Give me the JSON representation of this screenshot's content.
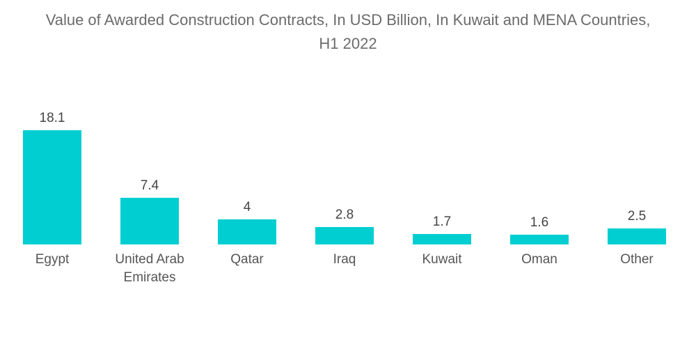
{
  "chart_data": {
    "type": "bar",
    "title": "Value of Awarded Construction Contracts, In USD Billion, In Kuwait and MENA Countries,\nH1 2022",
    "xlabel": "",
    "ylabel": "",
    "categories": [
      "Egypt",
      "United Arab Emirates",
      "Qatar",
      "Iraq",
      "Kuwait",
      "Oman",
      "Other"
    ],
    "values": [
      18.1,
      7.4,
      4,
      2.8,
      1.7,
      1.6,
      2.5
    ],
    "value_labels": [
      "18.1",
      "7.4",
      "4",
      "2.8",
      "1.7",
      "1.6",
      "2.5"
    ],
    "ylim": [
      0,
      18.1
    ],
    "grid": false,
    "legend": "none",
    "bar_color": "#00CED1"
  }
}
